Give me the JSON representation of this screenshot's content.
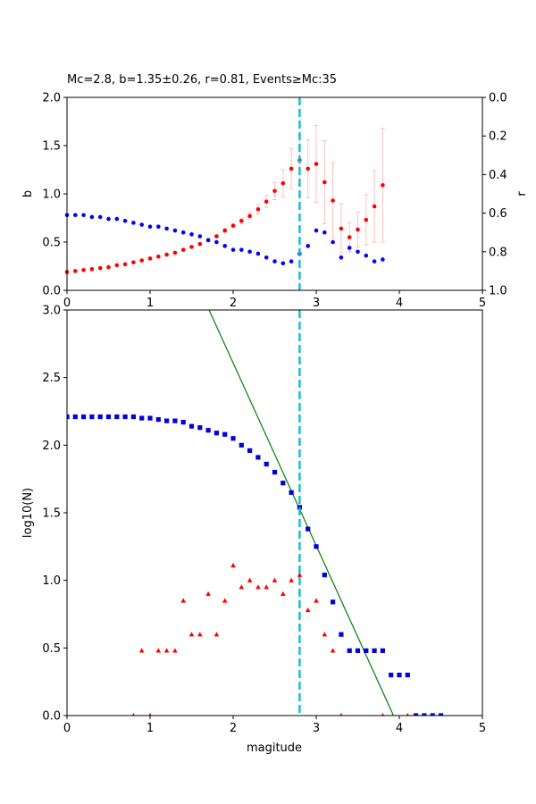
{
  "title": "Mc=2.8, b=1.35±0.26, r=0.81, Events≥Mc:35",
  "colors": {
    "b_points": "#ff0000",
    "b_errorbars": "#ffc0c0",
    "r_points": "#0000ff",
    "mc_line": "#17becf",
    "cumulative": "#0000dd",
    "noncumulative": "#ff0000",
    "fit_line": "#008000"
  },
  "top": {
    "ylabel_left": "b",
    "ylabel_right": "r",
    "x_ticks": [
      "0",
      "1",
      "2",
      "3",
      "4",
      "5"
    ],
    "y_ticks": [
      "0.0",
      "0.5",
      "1.0",
      "1.5",
      "2.0"
    ],
    "r_ticks": [
      "0.0",
      "0.2",
      "0.4",
      "0.6",
      "0.8",
      "1.0"
    ]
  },
  "bottom": {
    "xlabel": "magitude",
    "ylabel": "log10(N)",
    "x_ticks": [
      "0",
      "1",
      "2",
      "3",
      "4",
      "5"
    ],
    "y_ticks": [
      "0.0",
      "0.5",
      "1.0",
      "1.5",
      "2.0",
      "2.5",
      "3.0"
    ]
  },
  "chart_data": [
    {
      "type": "scatter",
      "panel": "top",
      "xlim": [
        0,
        5
      ],
      "ylim": [
        0,
        2
      ],
      "y2lim_inverted": [
        0,
        1
      ],
      "mc": 2.8,
      "series": [
        {
          "x": [
            0.0,
            0.1,
            0.2,
            0.3,
            0.4,
            0.5,
            0.6,
            0.7,
            0.8,
            0.9,
            1.0,
            1.1,
            1.2,
            1.3,
            1.4,
            1.5,
            1.6,
            1.7,
            1.8,
            1.9,
            2.0,
            2.1,
            2.2,
            2.3,
            2.4,
            2.5,
            2.6,
            2.7,
            2.8,
            2.9,
            3.0,
            3.1,
            3.2,
            3.3,
            3.4,
            3.5,
            3.6,
            3.7,
            3.8
          ],
          "y": [
            0.19,
            0.2,
            0.21,
            0.22,
            0.23,
            0.24,
            0.26,
            0.27,
            0.29,
            0.31,
            0.33,
            0.35,
            0.37,
            0.39,
            0.42,
            0.45,
            0.48,
            0.52,
            0.56,
            0.62,
            0.67,
            0.72,
            0.77,
            0.84,
            0.92,
            1.03,
            1.11,
            1.26,
            1.35,
            1.26,
            1.31,
            1.12,
            0.93,
            0.64,
            0.55,
            0.63,
            0.73,
            0.87,
            1.09
          ],
          "err": [
            0,
            0,
            0,
            0,
            0,
            0,
            0,
            0,
            0,
            0,
            0,
            0,
            0,
            0,
            0,
            0,
            0,
            0,
            0.01,
            0.02,
            0.02,
            0.03,
            0.03,
            0.05,
            0.06,
            0.09,
            0.14,
            0.21,
            0.26,
            0.3,
            0.4,
            0.43,
            0.39,
            0.26,
            0.15,
            0.18,
            0.26,
            0.37,
            0.59
          ]
        },
        {
          "x": [
            0.0,
            0.1,
            0.2,
            0.3,
            0.4,
            0.5,
            0.6,
            0.7,
            0.8,
            0.9,
            1.0,
            1.1,
            1.2,
            1.3,
            1.4,
            1.5,
            1.6,
            1.7,
            1.8,
            1.9,
            2.0,
            2.1,
            2.2,
            2.3,
            2.4,
            2.5,
            2.6,
            2.7,
            2.8,
            2.9,
            3.0,
            3.1,
            3.2,
            3.3,
            3.4,
            3.5,
            3.6,
            3.7,
            3.8
          ],
          "r": [
            0.61,
            0.61,
            0.61,
            0.62,
            0.62,
            0.63,
            0.63,
            0.64,
            0.65,
            0.66,
            0.67,
            0.67,
            0.68,
            0.69,
            0.7,
            0.71,
            0.72,
            0.74,
            0.75,
            0.77,
            0.79,
            0.79,
            0.8,
            0.81,
            0.83,
            0.85,
            0.86,
            0.85,
            0.81,
            0.77,
            0.69,
            0.7,
            0.75,
            0.83,
            0.78,
            0.8,
            0.82,
            0.85,
            0.84
          ]
        }
      ]
    },
    {
      "type": "scatter",
      "panel": "bottom",
      "xlim": [
        0,
        5
      ],
      "ylim": [
        0,
        3
      ],
      "mc": 2.8,
      "series": [
        {
          "marker": "square",
          "x": [
            0.0,
            0.1,
            0.2,
            0.3,
            0.4,
            0.5,
            0.6,
            0.7,
            0.8,
            0.9,
            1.0,
            1.1,
            1.2,
            1.3,
            1.4,
            1.5,
            1.6,
            1.7,
            1.8,
            1.9,
            2.0,
            2.1,
            2.2,
            2.3,
            2.4,
            2.5,
            2.6,
            2.7,
            2.8,
            2.9,
            3.0,
            3.1,
            3.2,
            3.3,
            3.4,
            3.5,
            3.6,
            3.7,
            3.8,
            3.9,
            4.0,
            4.1,
            4.2,
            4.3,
            4.4,
            4.5
          ],
          "y": [
            2.21,
            2.21,
            2.21,
            2.21,
            2.21,
            2.21,
            2.21,
            2.21,
            2.21,
            2.2,
            2.2,
            2.19,
            2.18,
            2.18,
            2.17,
            2.14,
            2.13,
            2.11,
            2.09,
            2.08,
            2.05,
            2.0,
            1.96,
            1.91,
            1.86,
            1.8,
            1.72,
            1.65,
            1.54,
            1.38,
            1.25,
            1.04,
            0.84,
            0.6,
            0.48,
            0.48,
            0.48,
            0.48,
            0.48,
            0.3,
            0.3,
            0.3,
            0.0,
            0.0,
            0.0,
            0.0
          ]
        },
        {
          "marker": "triangle",
          "x": [
            0.8,
            0.9,
            1.0,
            1.1,
            1.2,
            1.3,
            1.4,
            1.5,
            1.6,
            1.7,
            1.8,
            1.9,
            2.0,
            2.1,
            2.2,
            2.3,
            2.4,
            2.5,
            2.6,
            2.7,
            2.8,
            2.9,
            3.0,
            3.1,
            3.2,
            3.3,
            3.8,
            4.1
          ],
          "y": [
            0.0,
            0.48,
            0.0,
            0.48,
            0.48,
            0.48,
            0.85,
            0.6,
            0.6,
            0.9,
            0.6,
            0.85,
            1.11,
            0.95,
            1.0,
            0.95,
            0.95,
            1.0,
            0.9,
            1.0,
            1.04,
            0.78,
            0.85,
            0.6,
            0.48,
            0.0,
            0.0,
            0.0
          ]
        },
        {
          "type": "line",
          "x": [
            1.71,
            3.93
          ],
          "y": [
            3.0,
            0.0
          ]
        }
      ]
    }
  ]
}
